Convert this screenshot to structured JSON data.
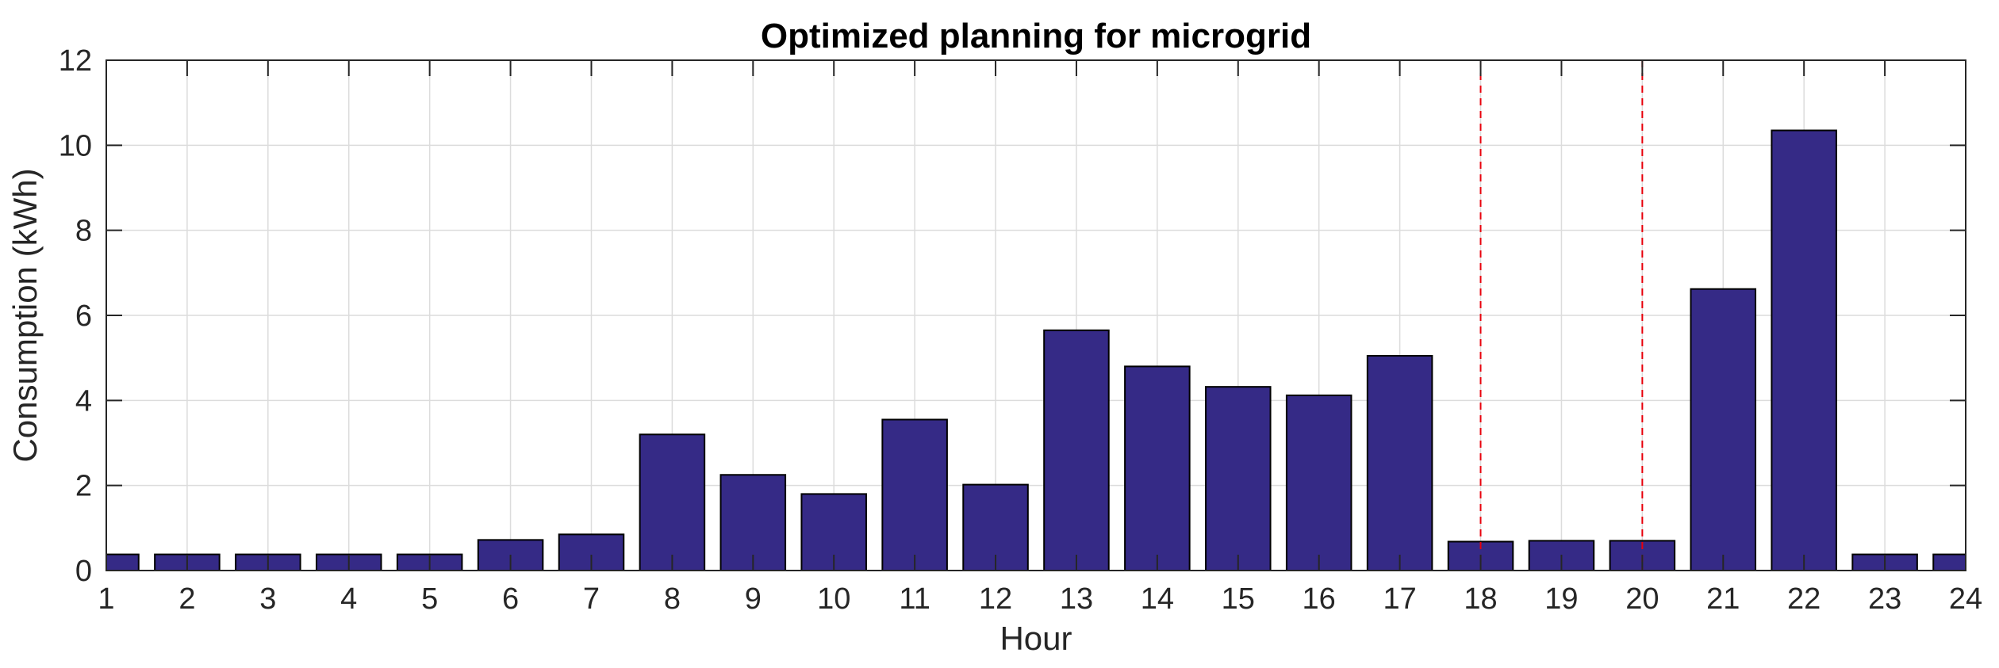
{
  "chart_data": {
    "type": "bar",
    "title": "Optimized planning for microgrid",
    "xlabel": "Hour",
    "ylabel": "Consumption (kWh)",
    "categories": [
      1,
      2,
      3,
      4,
      5,
      6,
      7,
      8,
      9,
      10,
      11,
      12,
      13,
      14,
      15,
      16,
      17,
      18,
      19,
      20,
      21,
      22,
      23,
      24
    ],
    "values": [
      0.38,
      0.38,
      0.38,
      0.38,
      0.38,
      0.72,
      0.85,
      3.2,
      2.25,
      1.8,
      3.55,
      2.02,
      5.65,
      4.8,
      4.32,
      4.12,
      5.05,
      0.68,
      0.7,
      0.7,
      6.62,
      10.35,
      0.38,
      0.38
    ],
    "xlim": [
      1,
      24
    ],
    "ylim": [
      0,
      12
    ],
    "xticks": [
      1,
      2,
      3,
      4,
      5,
      6,
      7,
      8,
      9,
      10,
      11,
      12,
      13,
      14,
      15,
      16,
      17,
      18,
      19,
      20,
      21,
      22,
      23,
      24
    ],
    "yticks": [
      0,
      2,
      4,
      6,
      8,
      10,
      12
    ],
    "grid": true,
    "bar_color": "#352a86",
    "bar_edge_color": "#000000",
    "reference_lines": [
      {
        "x": 18,
        "color": "#e8000b",
        "style": "dashed"
      },
      {
        "x": 20,
        "color": "#e8000b",
        "style": "dashed"
      }
    ]
  }
}
